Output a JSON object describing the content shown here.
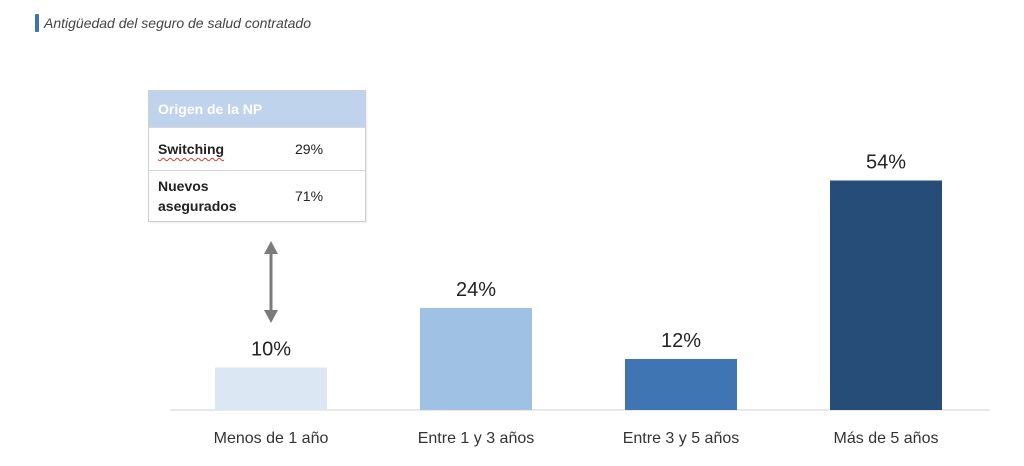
{
  "header": {
    "title": "Antigüedad del seguro de salud contratado"
  },
  "chart_data": {
    "type": "bar",
    "categories": [
      "Menos de 1 año",
      "Entre 1 y 3 años",
      "Entre 3 y 5 años",
      "Más de 5 años"
    ],
    "values": [
      10,
      24,
      12,
      54
    ],
    "value_labels": [
      "10%",
      "24%",
      "12%",
      "54%"
    ],
    "colors": [
      "#dce7f4",
      "#9fc1e4",
      "#3f75b2",
      "#264d77"
    ],
    "ylim": [
      0,
      60
    ],
    "title": "",
    "xlabel": "",
    "ylabel": "",
    "grid": false,
    "legend": "none"
  },
  "np_table": {
    "title": "Origen de la NP",
    "rows": [
      {
        "name": "Switching",
        "value": "29%"
      },
      {
        "name_line1": "Nuevos",
        "name_line2": "asegurados",
        "value": "71%"
      }
    ]
  }
}
